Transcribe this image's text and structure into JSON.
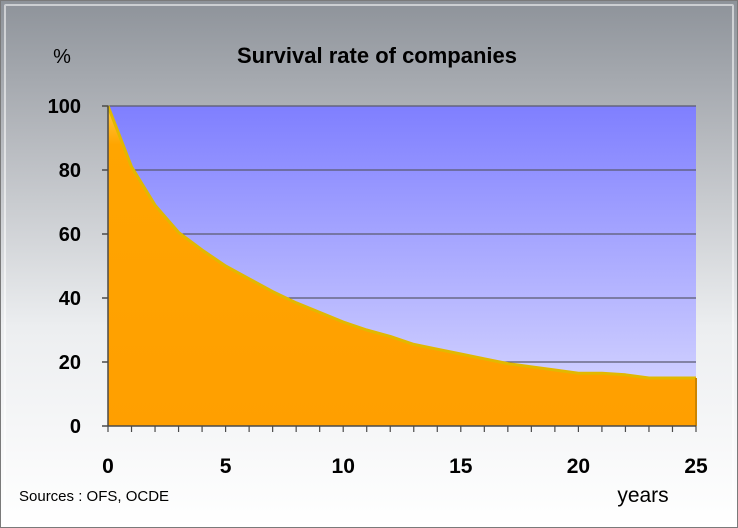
{
  "chart_data": {
    "type": "area",
    "title": "Survival rate of companies",
    "ylabel": "%",
    "xlabel": "years",
    "source": "Sources : OFS, OCDE",
    "xlim": [
      0,
      25
    ],
    "ylim": [
      0,
      100
    ],
    "xticks": [
      0,
      5,
      10,
      15,
      20,
      25
    ],
    "yticks": [
      0,
      20,
      40,
      60,
      80,
      100
    ],
    "grid": true,
    "x": [
      0,
      1,
      2,
      3,
      4,
      5,
      6,
      7,
      8,
      9,
      10,
      11,
      12,
      13,
      14,
      15,
      16,
      17,
      18,
      19,
      20,
      21,
      22,
      23,
      24,
      25
    ],
    "series": [
      {
        "values": [
          100,
          81,
          69,
          60.5,
          55,
          50,
          46,
          42,
          38.5,
          35.5,
          32.5,
          30,
          28,
          25.5,
          24,
          22.5,
          21,
          19.5,
          18.5,
          17.5,
          16.5,
          16.5,
          16,
          15,
          15,
          15
        ]
      }
    ],
    "colors": {
      "fill": "#ffa500",
      "fill_light": "#ffcb45",
      "plot_top": "#7f7fff",
      "plot_bottom": "#dcdcff",
      "grid": "#5a5a6e",
      "edge": "#e2b800"
    }
  }
}
